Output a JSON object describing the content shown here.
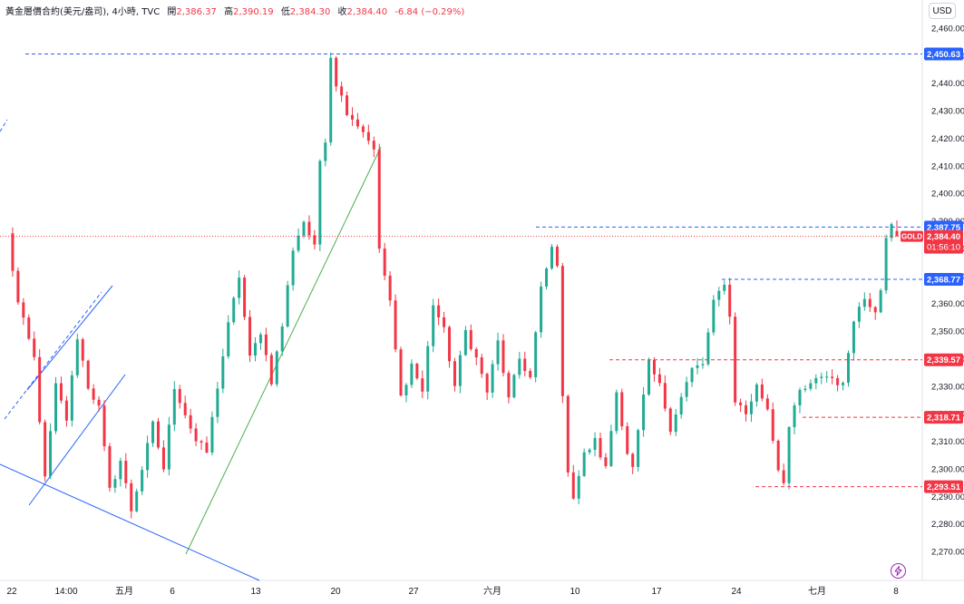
{
  "header": {
    "symbol": "黃金層價合約(美元/盎司)",
    "interval": "4小時",
    "source": "TVC",
    "open_label": "開",
    "open": "2,386.37",
    "high_label": "高",
    "high": "2,390.19",
    "low_label": "低",
    "low": "2,384.30",
    "close_label": "收",
    "close": "2,384.40",
    "change": "-6.84 (−0.29%)"
  },
  "toolbar": {
    "currency": "USD"
  },
  "colors": {
    "up": "#22ab94",
    "down": "#f23645",
    "trendline_blue": "#2962ff",
    "trendline_green": "#4caf50",
    "level_red": "#f23645",
    "level_blue": "#2962ff",
    "bolt": "#9c27b0"
  },
  "icons": {
    "alert": "lightning-bolt-icon"
  },
  "chart_data": {
    "type": "candlestick",
    "ylim": [
      2265,
      2465
    ],
    "y_ticks": [
      2270,
      2280,
      2290,
      2300,
      2310,
      2320,
      2330,
      2340,
      2350,
      2360,
      2370,
      2380,
      2390,
      2400,
      2410,
      2420,
      2430,
      2440,
      2450,
      2460
    ],
    "y_tick_labels": [
      "2,270.00",
      "2,280.00",
      "2,290.00",
      "2,300.00",
      "2,310.00",
      "2,320.00",
      "2,330.00",
      "2,340.00",
      "2,350.00",
      "2,360.00",
      "2,370.00",
      "2,380.00",
      "2,390.00",
      "2,400.00",
      "2,410.00",
      "2,420.00",
      "2,430.00",
      "2,440.00",
      "2,450.00",
      "2,460.00"
    ],
    "x_tick_labels": [
      "22",
      "14:00",
      "五月",
      "6",
      "13",
      "20",
      "27",
      "六月",
      "10",
      "17",
      "24",
      "七月",
      "8"
    ],
    "path_points": [
      [
        0,
        2385
      ],
      [
        2,
        2360
      ],
      [
        5,
        2340
      ],
      [
        7,
        2296
      ],
      [
        9,
        2330
      ],
      [
        11,
        2318
      ],
      [
        13,
        2348
      ],
      [
        15,
        2330
      ],
      [
        17,
        2322
      ],
      [
        19,
        2292
      ],
      [
        21,
        2303
      ],
      [
        23,
        2285
      ],
      [
        25,
        2300
      ],
      [
        27,
        2316
      ],
      [
        29,
        2300
      ],
      [
        31,
        2330
      ],
      [
        33,
        2320
      ],
      [
        35,
        2310
      ],
      [
        37,
        2306
      ],
      [
        39,
        2330
      ],
      [
        41,
        2352
      ],
      [
        43,
        2370
      ],
      [
        45,
        2340
      ],
      [
        47,
        2350
      ],
      [
        49,
        2332
      ],
      [
        51,
        2352
      ],
      [
        53,
        2380
      ],
      [
        55,
        2390
      ],
      [
        57,
        2380
      ],
      [
        58,
        2412
      ],
      [
        59,
        2420
      ],
      [
        60,
        2450
      ],
      [
        61,
        2440
      ],
      [
        63,
        2430
      ],
      [
        65,
        2425
      ],
      [
        67,
        2420
      ],
      [
        68,
        2415
      ],
      [
        69,
        2380
      ],
      [
        71,
        2360
      ],
      [
        73,
        2326
      ],
      [
        75,
        2338
      ],
      [
        77,
        2328
      ],
      [
        79,
        2360
      ],
      [
        81,
        2350
      ],
      [
        83,
        2330
      ],
      [
        85,
        2350
      ],
      [
        87,
        2340
      ],
      [
        89,
        2328
      ],
      [
        91,
        2346
      ],
      [
        93,
        2325
      ],
      [
        95,
        2340
      ],
      [
        97,
        2333
      ],
      [
        99,
        2365
      ],
      [
        101,
        2380
      ],
      [
        102,
        2375
      ],
      [
        103,
        2325
      ],
      [
        104,
        2300
      ],
      [
        105,
        2290
      ],
      [
        107,
        2305
      ],
      [
        109,
        2310
      ],
      [
        111,
        2300
      ],
      [
        113,
        2328
      ],
      [
        115,
        2306
      ],
      [
        116,
        2300
      ],
      [
        118,
        2326
      ],
      [
        119,
        2338
      ],
      [
        121,
        2330
      ],
      [
        123,
        2315
      ],
      [
        125,
        2326
      ],
      [
        127,
        2336
      ],
      [
        129,
        2338
      ],
      [
        131,
        2360
      ],
      [
        133,
        2368
      ],
      [
        134,
        2355
      ],
      [
        135,
        2325
      ],
      [
        137,
        2320
      ],
      [
        139,
        2330
      ],
      [
        141,
        2322
      ],
      [
        143,
        2300
      ],
      [
        144,
        2296
      ],
      [
        145,
        2315
      ],
      [
        147,
        2328
      ],
      [
        149,
        2330
      ],
      [
        151,
        2334
      ],
      [
        153,
        2333
      ],
      [
        155,
        2330
      ],
      [
        157,
        2355
      ],
      [
        159,
        2362
      ],
      [
        161,
        2358
      ],
      [
        162,
        2366
      ],
      [
        163,
        2385
      ],
      [
        164,
        2388
      ],
      [
        165,
        2384.4
      ]
    ],
    "last_bar": {
      "open": 2386.37,
      "high": 2390.19,
      "low": 2384.3,
      "close": 2384.4
    },
    "price_levels": [
      {
        "value": 2450.63,
        "label": "2,450.63",
        "color": "blue"
      },
      {
        "value": 2387.75,
        "label": "2,387.75",
        "color": "blue"
      },
      {
        "value": 2368.77,
        "label": "2,368.77",
        "color": "blue"
      },
      {
        "value": 2339.57,
        "label": "2,339.57",
        "color": "red"
      },
      {
        "value": 2318.71,
        "label": "2,318.71",
        "color": "red"
      },
      {
        "value": 2293.51,
        "label": "2,293.51",
        "color": "red"
      }
    ],
    "last_price": {
      "value": 2384.4,
      "label": "2,384.40",
      "symbol_tag": "GOLD",
      "countdown": "01:56:10"
    }
  }
}
